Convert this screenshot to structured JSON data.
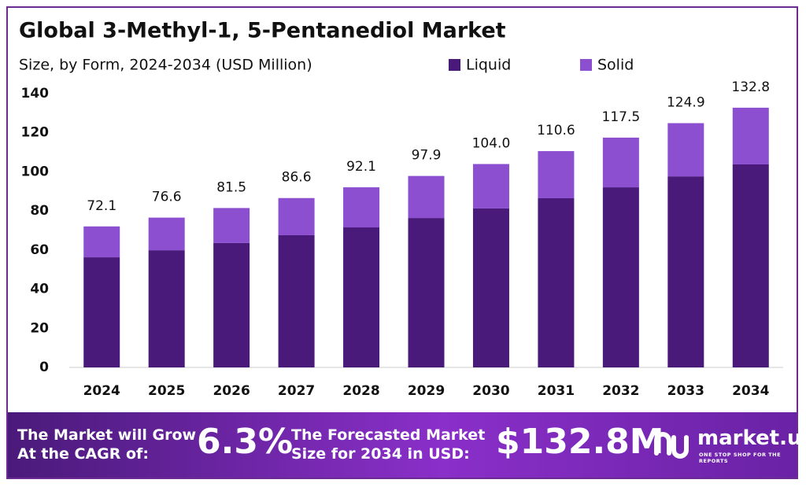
{
  "chart_data": {
    "type": "stacked_bar",
    "title": "Global 3-Methyl-1, 5-Pentanediol Market",
    "subtitle": "Size, by Form, 2024-2034 (USD Million)",
    "categories": [
      "2024",
      "2025",
      "2026",
      "2027",
      "2028",
      "2029",
      "2030",
      "2031",
      "2032",
      "2033",
      "2034"
    ],
    "series": [
      {
        "name": "Liquid",
        "color": "#4a1a7a",
        "values": [
          56.3,
          59.9,
          63.6,
          67.6,
          71.6,
          76.4,
          81.3,
          86.5,
          92.1,
          97.7,
          103.8
        ]
      },
      {
        "name": "Solid",
        "color": "#8b4fd0",
        "values": [
          15.8,
          16.7,
          17.9,
          19.0,
          20.5,
          21.5,
          22.7,
          24.1,
          25.4,
          27.2,
          29.0
        ]
      }
    ],
    "totals": [
      72.1,
      76.6,
      81.5,
      86.6,
      92.1,
      97.9,
      {
        "value": 104.0,
        "label": "104.0"
      },
      110.6,
      117.5,
      124.9,
      132.8
    ],
    "ylim": [
      0,
      140
    ],
    "yticks": [
      0,
      20,
      40,
      60,
      80,
      100,
      120,
      140
    ],
    "grid": false
  },
  "banner": {
    "cagr_text": [
      "The Market will Grow",
      "At the CAGR of:"
    ],
    "cagr_value": "6.3%",
    "forecast_text": [
      "The Forecasted Market",
      "Size for 2034 in USD:"
    ],
    "forecast_value": "$132.8M",
    "logo": "market.us",
    "tagline": "ONE STOP SHOP FOR THE REPORTS"
  }
}
